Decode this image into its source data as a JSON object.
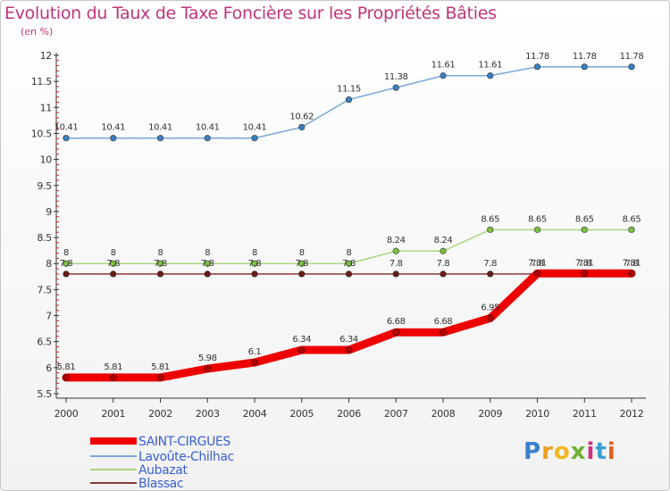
{
  "header": {
    "title": "Evolution du Taux de Taxe Foncière sur les Propriétés Bâties",
    "unit": "(en %)"
  },
  "logo": {
    "text": "Proxiti",
    "colors": [
      "#3a7fd0",
      "#e8a020",
      "#f0b820",
      "#6fb030",
      "#d03080",
      "#3a9fd0",
      "#e06020"
    ]
  },
  "chart_data": {
    "type": "line",
    "x": [
      2000,
      2001,
      2002,
      2003,
      2004,
      2005,
      2006,
      2007,
      2008,
      2009,
      2010,
      2011,
      2012
    ],
    "x_tick_labels": [
      "2000",
      "2001",
      "2002",
      "2003",
      "2004",
      "2005",
      "2006",
      "2007",
      "2008",
      "2009",
      "2010",
      "2011",
      "2012"
    ],
    "ylim": [
      5.5,
      12
    ],
    "y_ticks": [
      5.5,
      6,
      6.5,
      7,
      7.5,
      8,
      8.5,
      9,
      9.5,
      10,
      10.5,
      11,
      11.5,
      12
    ],
    "y_tick_labels": [
      "5.5",
      "6",
      "6.5",
      "7",
      "7.5",
      "8",
      "8.5",
      "9",
      "9.5",
      "10",
      "10.5",
      "11",
      "11.5",
      "12"
    ],
    "grid": false,
    "legend_position": "bottom-left",
    "series": [
      {
        "name": "SAINT-CIRGUES",
        "color": "#ee0000",
        "values": [
          5.81,
          5.81,
          5.81,
          5.98,
          6.1,
          6.34,
          6.34,
          6.68,
          6.68,
          6.95,
          7.81,
          7.81,
          7.81
        ],
        "labels": [
          "5.81",
          "5.81",
          "5.81",
          "5.98",
          "6.1",
          "6.34",
          "6.34",
          "6.68",
          "6.68",
          "6.95",
          "7.81",
          "7.81",
          "7.81"
        ],
        "bold": true
      },
      {
        "name": "Lavoûte-Chilhac",
        "color": "#7aa8d8",
        "marker_color": "#3a7fc0",
        "values": [
          10.41,
          10.41,
          10.41,
          10.41,
          10.41,
          10.62,
          11.15,
          11.38,
          11.61,
          11.61,
          11.78,
          11.78,
          11.78
        ],
        "labels": [
          "10.41",
          "10.41",
          "10.41",
          "10.41",
          "10.41",
          "10.62",
          "11.15",
          "11.38",
          "11.61",
          "11.61",
          "11.78",
          "11.78",
          "11.78"
        ]
      },
      {
        "name": "Aubazat",
        "color": "#a8d880",
        "marker_color": "#7cc040",
        "values": [
          8,
          8,
          8,
          8,
          8,
          8,
          8,
          8.24,
          8.24,
          8.65,
          8.65,
          8.65,
          8.65
        ],
        "labels": [
          "8",
          "8",
          "8",
          "8",
          "8",
          "8",
          "8",
          "8.24",
          "8.24",
          "8.65",
          "8.65",
          "8.65",
          "8.65"
        ]
      },
      {
        "name": "Blassac",
        "color": "#8a3a3a",
        "marker_color": "#6a1a1a",
        "values": [
          7.8,
          7.8,
          7.8,
          7.8,
          7.8,
          7.8,
          7.8,
          7.8,
          7.8,
          7.8,
          7.8,
          7.8,
          7.8
        ],
        "labels": [
          "7.8",
          "7.8",
          "7.8",
          "7.8",
          "7.8",
          "7.8",
          "7.8",
          "7.8",
          "7.8",
          "7.8",
          "7.8",
          "7.8",
          "7.8"
        ]
      }
    ]
  }
}
